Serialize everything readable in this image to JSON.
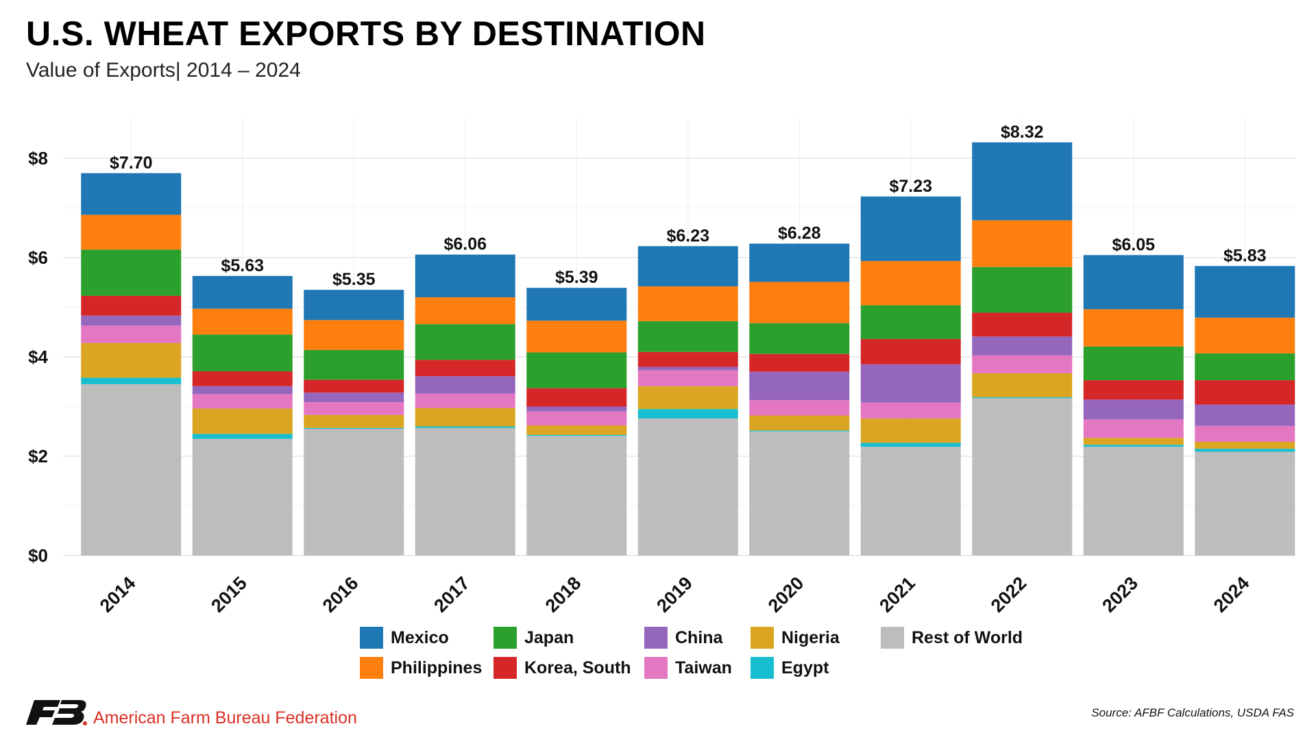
{
  "header": {
    "title": "U.S. WHEAT EXPORTS BY DESTINATION",
    "subtitle": "Value of Exports| 2014 – 2024"
  },
  "footer": {
    "organization": "American Farm Bureau Federation",
    "logo_text": "FB",
    "source": "Source: AFBF Calculations, USDA FAS"
  },
  "chart_data": {
    "type": "bar",
    "stacked": true,
    "title": "U.S. WHEAT EXPORTS BY DESTINATION",
    "subtitle": "Value of Exports| 2014 – 2024",
    "xlabel": "",
    "ylabel": "",
    "ylim": [
      0,
      8.8
    ],
    "yticks": [
      0,
      2,
      4,
      6,
      8
    ],
    "ytick_labels": [
      "$0",
      "$2",
      "$4",
      "$6",
      "$8"
    ],
    "grid": true,
    "legend_position": "bottom",
    "categories": [
      "2014",
      "2015",
      "2016",
      "2017",
      "2018",
      "2019",
      "2020",
      "2021",
      "2022",
      "2023",
      "2024"
    ],
    "totals": [
      7.7,
      5.63,
      5.35,
      6.06,
      5.39,
      6.23,
      6.28,
      7.23,
      8.32,
      6.05,
      5.83
    ],
    "total_labels": [
      "$7.70",
      "$5.63",
      "$5.35",
      "$6.06",
      "$5.39",
      "$6.23",
      "$6.28",
      "$7.23",
      "$8.32",
      "$6.05",
      "$5.83"
    ],
    "stack_order_bottom_to_top": [
      "Rest of World",
      "Egypt",
      "Nigeria",
      "Taiwan",
      "China",
      "Korea, South",
      "Japan",
      "Philippines",
      "Mexico"
    ],
    "series": [
      {
        "name": "Rest of World",
        "color": "#bdbdbd",
        "values": [
          3.45,
          2.35,
          2.55,
          2.57,
          2.41,
          2.76,
          2.5,
          2.19,
          3.17,
          2.19,
          2.09
        ]
      },
      {
        "name": "Egypt",
        "color": "#17becf",
        "values": [
          0.13,
          0.1,
          0.02,
          0.03,
          0.02,
          0.19,
          0.02,
          0.08,
          0.02,
          0.04,
          0.06
        ]
      },
      {
        "name": "Nigeria",
        "color": "#daa520",
        "values": [
          0.7,
          0.51,
          0.26,
          0.37,
          0.19,
          0.46,
          0.3,
          0.49,
          0.48,
          0.14,
          0.14
        ]
      },
      {
        "name": "Taiwan",
        "color": "#e377c2",
        "values": [
          0.35,
          0.29,
          0.26,
          0.29,
          0.28,
          0.32,
          0.31,
          0.32,
          0.36,
          0.37,
          0.32
        ]
      },
      {
        "name": "China",
        "color": "#9467bd",
        "values": [
          0.2,
          0.16,
          0.19,
          0.35,
          0.1,
          0.07,
          0.57,
          0.77,
          0.38,
          0.4,
          0.43
        ]
      },
      {
        "name": "Korea, South",
        "color": "#d62728",
        "values": [
          0.4,
          0.3,
          0.26,
          0.33,
          0.37,
          0.3,
          0.36,
          0.51,
          0.48,
          0.39,
          0.49
        ]
      },
      {
        "name": "Japan",
        "color": "#2ca02c",
        "values": [
          0.93,
          0.74,
          0.6,
          0.72,
          0.72,
          0.62,
          0.62,
          0.68,
          0.92,
          0.68,
          0.54
        ]
      },
      {
        "name": "Philippines",
        "color": "#ff7f0e",
        "values": [
          0.7,
          0.52,
          0.6,
          0.54,
          0.64,
          0.7,
          0.83,
          0.89,
          0.94,
          0.75,
          0.72
        ]
      },
      {
        "name": "Mexico",
        "color": "#1f77b4",
        "values": [
          0.84,
          0.66,
          0.61,
          0.86,
          0.66,
          0.81,
          0.77,
          1.3,
          1.57,
          1.09,
          1.04
        ]
      }
    ]
  },
  "legend": {
    "items": [
      {
        "label": "Mexico",
        "color": "#1f77b4"
      },
      {
        "label": "Japan",
        "color": "#2ca02c"
      },
      {
        "label": "China",
        "color": "#9467bd"
      },
      {
        "label": "Nigeria",
        "color": "#daa520"
      },
      {
        "label": "Rest of World",
        "color": "#bdbdbd"
      },
      {
        "label": "Philippines",
        "color": "#ff7f0e"
      },
      {
        "label": "Korea, South",
        "color": "#d62728"
      },
      {
        "label": "Taiwan",
        "color": "#e377c2"
      },
      {
        "label": "Egypt",
        "color": "#17becf"
      }
    ]
  }
}
